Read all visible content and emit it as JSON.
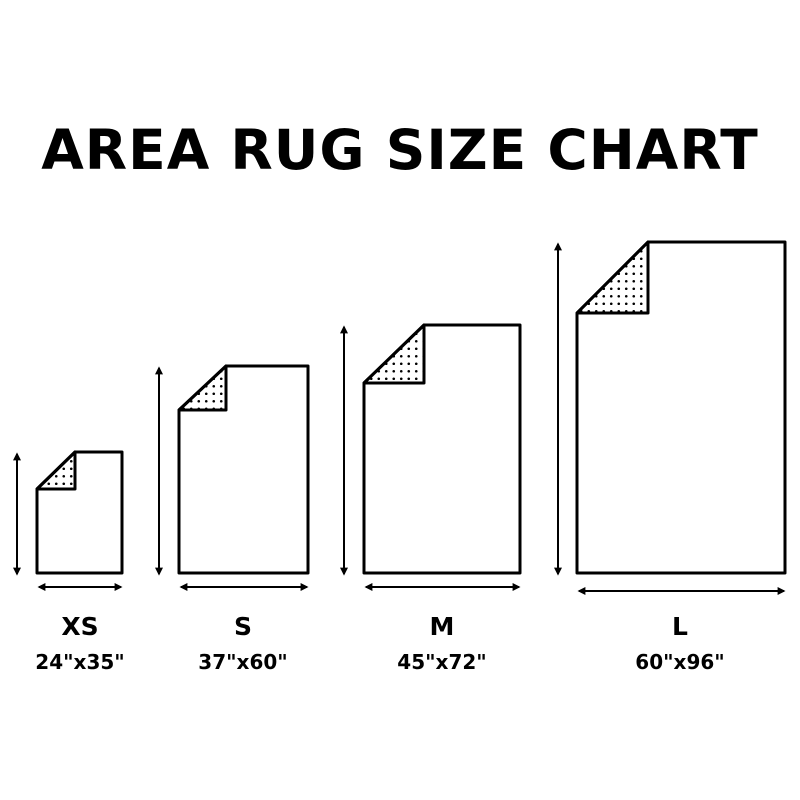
{
  "title": "AREA RUG SIZE CHART",
  "colors": {
    "ink": "#000000",
    "background": "#ffffff"
  },
  "rugs": [
    {
      "size": "XS",
      "dimensions": "24\"x35\"",
      "width_in": 24,
      "length_in": 35
    },
    {
      "size": "S",
      "dimensions": "37\"x60\"",
      "width_in": 37,
      "length_in": 60
    },
    {
      "size": "M",
      "dimensions": "45\"x72\"",
      "width_in": 45,
      "length_in": 72
    },
    {
      "size": "L",
      "dimensions": "60\"x96\"",
      "width_in": 60,
      "length_in": 96
    }
  ]
}
